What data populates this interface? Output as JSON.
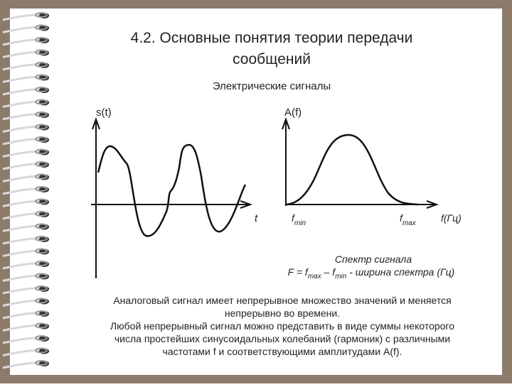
{
  "title_lines": [
    "4.2. Основные понятия теории передачи",
    "сообщений"
  ],
  "subtitle": "Электрические сигналы",
  "left_plot": {
    "y_label": "s(t)",
    "x_label": "t"
  },
  "right_plot": {
    "y_label": "A(f)",
    "x_label": "f(Гц)",
    "f_min": {
      "base": "f",
      "sub": "min"
    },
    "f_max": {
      "base": "f",
      "sub": "max"
    }
  },
  "caption": "Спектр сигнала",
  "formula": [
    {
      "text": "F = f"
    },
    {
      "text": "max",
      "sub": true
    },
    {
      "text": " – f"
    },
    {
      "text": "min",
      "sub": true
    },
    {
      "text": " - ширина спектра (Гц)"
    }
  ],
  "paragraph": [
    "Аналоговый сигнал имеет непрерывное множество значений и меняется",
    "непрерывно во времени.",
    "Любой непрерывный сигнал можно представить в виде суммы некоторого",
    "числа простейших синусоидальных колебаний (гармоник) с различными",
    "частотами f и соответствующими амплитудами A(f)."
  ]
}
